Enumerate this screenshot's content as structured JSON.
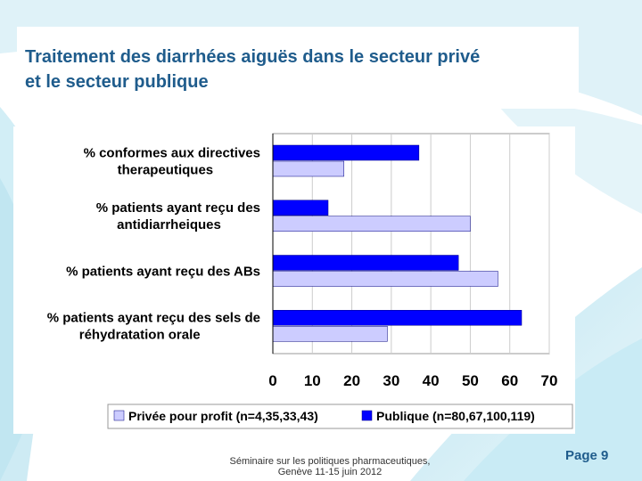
{
  "slide": {
    "title_line1": "Traitement des diarrhées aiguës dans le secteur privé",
    "title_line2": "et le secteur publique",
    "footer_line1": "Séminaire sur les politiques pharmaceutiques,",
    "footer_line2": "Genève 11-15 juin 2012",
    "page": "Page 9"
  },
  "colors": {
    "title": "#1f5c8c",
    "prive": "#ccccff",
    "publique": "#0000ff"
  },
  "chart_data": {
    "type": "bar",
    "orientation": "horizontal",
    "title": "",
    "xlim": [
      0,
      70
    ],
    "xticks": [
      0,
      10,
      20,
      30,
      40,
      50,
      60,
      70
    ],
    "categories": [
      [
        "% conformes aux directives",
        "therapeutiques"
      ],
      [
        "% patients ayant reçu des",
        "antidiarrheiques"
      ],
      [
        "% patients ayant reçu des ABs"
      ],
      [
        "% patients ayant reçu des sels de",
        "réhydratation orale"
      ]
    ],
    "series": [
      {
        "name": "Publique (n=80,67,100,119)",
        "color": "#0000ff",
        "values": [
          37,
          14,
          47,
          63
        ]
      },
      {
        "name": "Privée pour profit (n=4,35,33,43)",
        "color": "#ccccff",
        "values": [
          18,
          50,
          57,
          29
        ]
      }
    ],
    "legend": [
      "Privée pour profit (n=4,35,33,43)",
      "Publique (n=80,67,100,119)"
    ],
    "legend_position": "bottom"
  }
}
